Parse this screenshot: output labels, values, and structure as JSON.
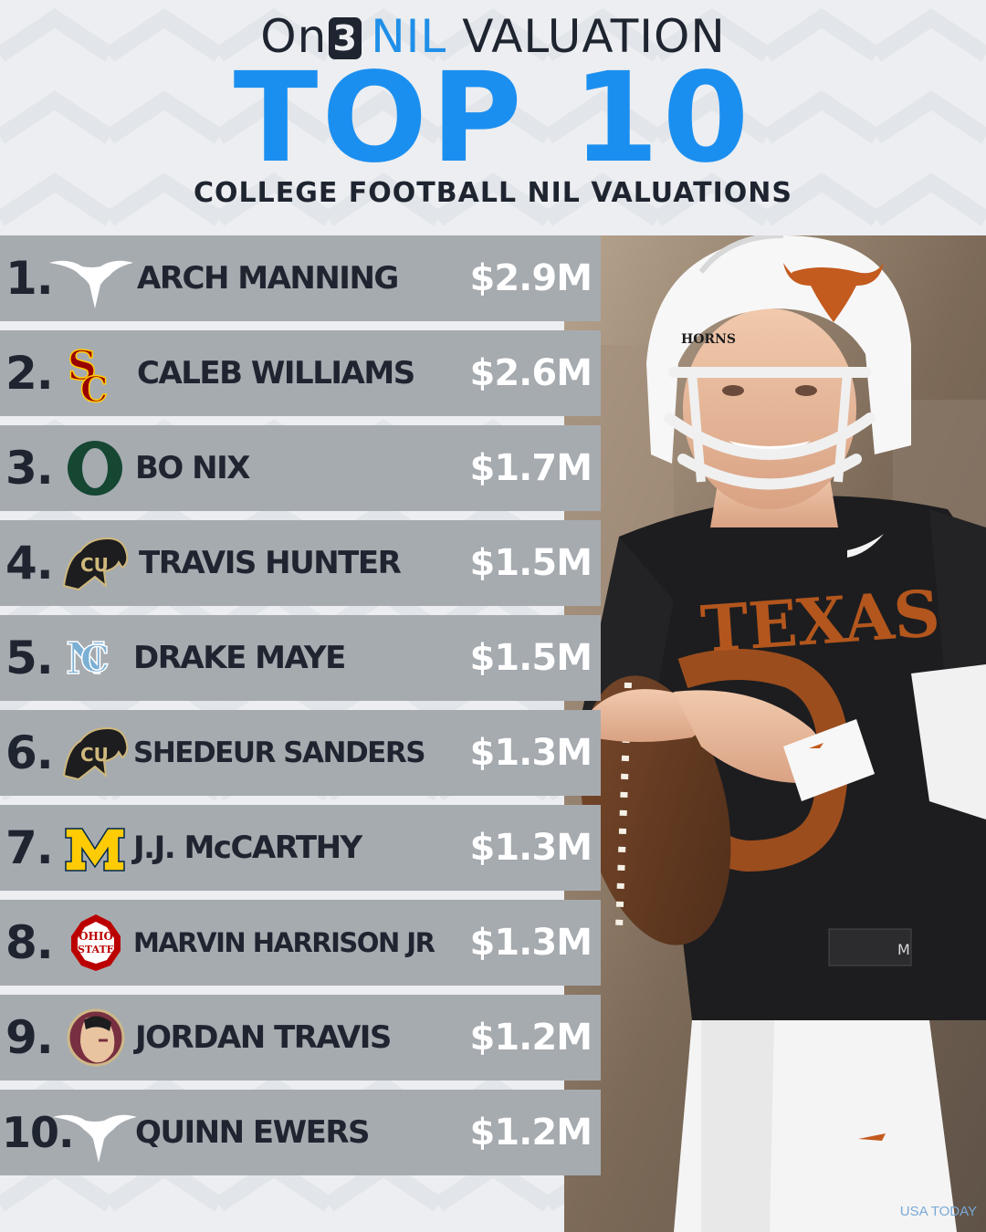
{
  "header": {
    "brand_on": "On",
    "brand_three": "3",
    "brand_nil": "NIL",
    "brand_valuation": "VALUATION",
    "title": "TOP 10",
    "subtitle": "COLLEGE FOOTBALL NIL VALUATIONS"
  },
  "colors": {
    "accent_blue": "#1b8ff0",
    "dark": "#1f2530",
    "row_gray": "#a6abb0",
    "texas_orange": "#bf5700"
  },
  "rankings": [
    {
      "rank": "1.",
      "logo": "texas-longhorns-logo",
      "name": "ARCH MANNING",
      "value": "$2.9M"
    },
    {
      "rank": "2.",
      "logo": "usc-trojans-logo",
      "name": "CALEB WILLIAMS",
      "value": "$2.6M"
    },
    {
      "rank": "3.",
      "logo": "oregon-ducks-logo",
      "name": "BO NIX",
      "value": "$1.7M"
    },
    {
      "rank": "4.",
      "logo": "colorado-buffaloes-logo",
      "name": "TRAVIS HUNTER",
      "value": "$1.5M"
    },
    {
      "rank": "5.",
      "logo": "north-carolina-tar-heels-logo",
      "name": "DRAKE MAYE",
      "value": "$1.5M"
    },
    {
      "rank": "6.",
      "logo": "colorado-buffaloes-logo",
      "name": "SHEDEUR SANDERS",
      "value": "$1.3M"
    },
    {
      "rank": "7.",
      "logo": "michigan-wolverines-logo",
      "name": "J.J. McCARTHY",
      "value": "$1.3M"
    },
    {
      "rank": "8.",
      "logo": "ohio-state-buckeyes-logo",
      "name": "MARVIN HARRISON JR",
      "value": "$1.3M"
    },
    {
      "rank": "9.",
      "logo": "florida-state-seminoles-logo",
      "name": "JORDAN TRAVIS",
      "value": "$1.2M"
    },
    {
      "rank": "10.",
      "logo": "texas-longhorns-logo",
      "name": "QUINN EWERS",
      "value": "$1.2M"
    }
  ],
  "photo": {
    "helmet_text": "HORNS",
    "jersey_text": "TEXAS",
    "size_tag": "M",
    "credit": "USA TODAY"
  }
}
